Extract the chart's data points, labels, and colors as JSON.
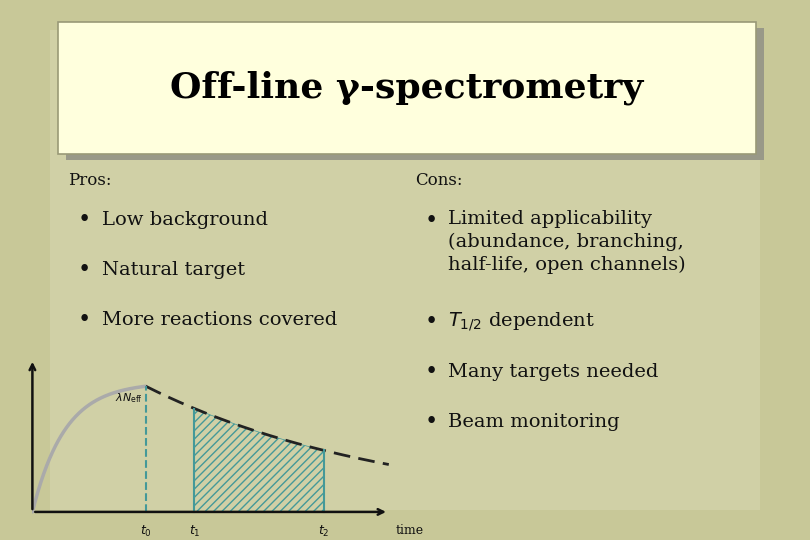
{
  "title": "Off-line γ-spectrometry",
  "bg_color": "#c8c898",
  "title_box_color": "#ffffdd",
  "title_box_edge": "#999977",
  "shadow_color": "#999988",
  "title_color": "#000000",
  "pros_label": "Pros:",
  "cons_label": "Cons:",
  "pros_items": [
    "Low background",
    "Natural target",
    "More reactions covered"
  ],
  "cons_item1_line1": "Limited applicability",
  "cons_item1_line2": "(abundance, branching,",
  "cons_item1_line3": "half-life, open channels)",
  "cons_item2": " dependent",
  "cons_item3": "Many targets needed",
  "cons_item4": "Beam monitoring",
  "label_color": "#111111",
  "bullet_color": "#111111",
  "label_fontsize": 12,
  "item_fontsize": 14,
  "title_fontsize": 26,
  "figsize": [
    8.1,
    5.4
  ],
  "curve_color_rise": "#aaaaaa",
  "curve_color_decay": "#222222",
  "teal_color": "#449999",
  "hatch_color": "#448888",
  "graph_bg": "#d8d8b0"
}
